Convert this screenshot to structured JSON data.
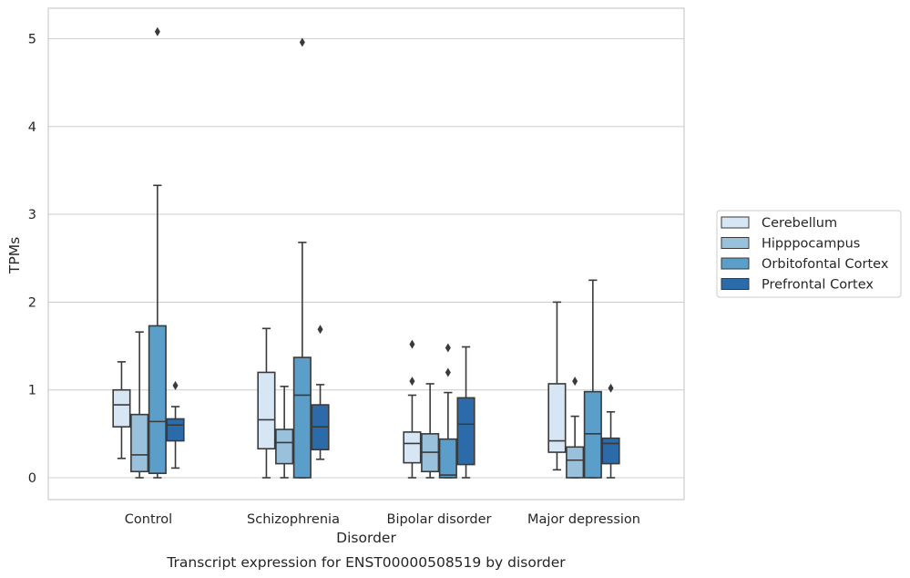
{
  "chart_data": {
    "type": "box",
    "title": "",
    "caption": "Transcript expression for ENST00000508519 by disorder",
    "xlabel": "Disorder",
    "ylabel": "TPMs",
    "ylim": [
      -0.25,
      5.35
    ],
    "yticks": [
      0,
      1,
      2,
      3,
      4,
      5
    ],
    "grid": true,
    "legend_position": "right",
    "categories": [
      "Control",
      "Schizophrenia",
      "Bipolar disorder",
      "Major depression"
    ],
    "series": [
      {
        "name": "Cerebellum",
        "color": "#d6e6f4",
        "boxes": [
          {
            "whislo": 0.22,
            "q1": 0.58,
            "med": 0.83,
            "q3": 1.0,
            "whishi": 1.32,
            "fliers": []
          },
          {
            "whislo": 0.0,
            "q1": 0.33,
            "med": 0.66,
            "q3": 1.2,
            "whishi": 1.7,
            "fliers": []
          },
          {
            "whislo": 0.0,
            "q1": 0.17,
            "med": 0.39,
            "q3": 0.52,
            "whishi": 0.94,
            "fliers": [
              1.1,
              1.52
            ]
          },
          {
            "whislo": 0.09,
            "q1": 0.29,
            "med": 0.42,
            "q3": 1.07,
            "whishi": 2.0,
            "fliers": []
          }
        ]
      },
      {
        "name": "Hipppocampus",
        "color": "#9ac1dc",
        "boxes": [
          {
            "whislo": 0.0,
            "q1": 0.07,
            "med": 0.26,
            "q3": 0.72,
            "whishi": 1.66,
            "fliers": []
          },
          {
            "whislo": 0.0,
            "q1": 0.16,
            "med": 0.4,
            "q3": 0.55,
            "whishi": 1.04,
            "fliers": []
          },
          {
            "whislo": 0.0,
            "q1": 0.07,
            "med": 0.29,
            "q3": 0.5,
            "whishi": 1.07,
            "fliers": []
          },
          {
            "whislo": 0.0,
            "q1": 0.0,
            "med": 0.2,
            "q3": 0.35,
            "whishi": 0.7,
            "fliers": [
              1.1
            ]
          }
        ]
      },
      {
        "name": "Orbitofontal Cortex",
        "color": "#5a9ec9",
        "boxes": [
          {
            "whislo": 0.0,
            "q1": 0.05,
            "med": 0.64,
            "q3": 1.73,
            "whishi": 3.33,
            "fliers": [
              5.08
            ]
          },
          {
            "whislo": 0.0,
            "q1": 0.0,
            "med": 0.94,
            "q3": 1.37,
            "whishi": 2.68,
            "fliers": [
              4.96
            ]
          },
          {
            "whislo": 0.0,
            "q1": 0.0,
            "med": 0.03,
            "q3": 0.44,
            "whishi": 0.97,
            "fliers": [
              1.2,
              1.48
            ]
          },
          {
            "whislo": 0.0,
            "q1": 0.0,
            "med": 0.5,
            "q3": 0.98,
            "whishi": 2.25,
            "fliers": []
          }
        ]
      },
      {
        "name": "Prefrontal Cortex",
        "color": "#2b6ba9",
        "boxes": [
          {
            "whislo": 0.11,
            "q1": 0.42,
            "med": 0.6,
            "q3": 0.67,
            "whishi": 0.81,
            "fliers": [
              1.05
            ]
          },
          {
            "whislo": 0.21,
            "q1": 0.32,
            "med": 0.58,
            "q3": 0.83,
            "whishi": 1.06,
            "fliers": [
              1.69
            ]
          },
          {
            "whislo": 0.0,
            "q1": 0.15,
            "med": 0.61,
            "q3": 0.91,
            "whishi": 1.49,
            "fliers": []
          },
          {
            "whislo": 0.0,
            "q1": 0.16,
            "med": 0.39,
            "q3": 0.45,
            "whishi": 0.75,
            "fliers": [
              1.02
            ]
          }
        ]
      }
    ]
  }
}
